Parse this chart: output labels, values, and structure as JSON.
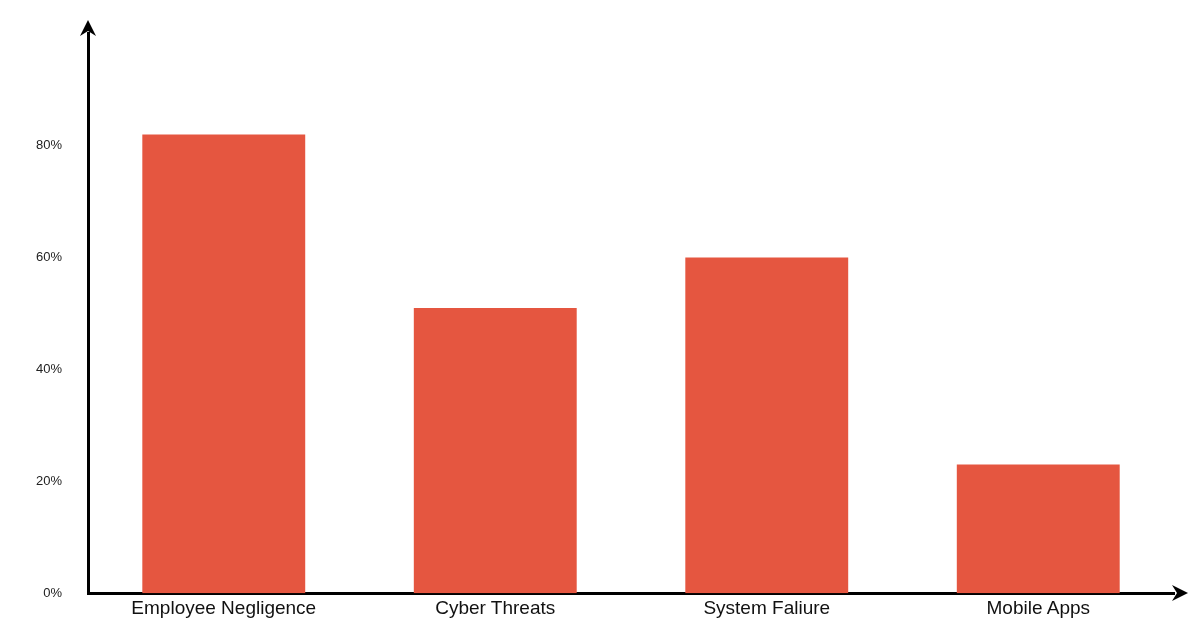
{
  "chart_data": {
    "type": "bar",
    "categories": [
      "Employee Negligence",
      "Cyber Threats",
      "System Faliure",
      "Mobile Apps"
    ],
    "values": [
      82,
      51,
      60,
      23
    ],
    "color": "#e55640",
    "ylim": [
      0,
      100
    ],
    "yticks": [
      {
        "value": 0,
        "label": "0%"
      },
      {
        "value": 20,
        "label": "20%"
      },
      {
        "value": 40,
        "label": "40%"
      },
      {
        "value": 60,
        "label": "60%"
      },
      {
        "value": 80,
        "label": "80%"
      }
    ],
    "grid": false,
    "legend": false
  }
}
